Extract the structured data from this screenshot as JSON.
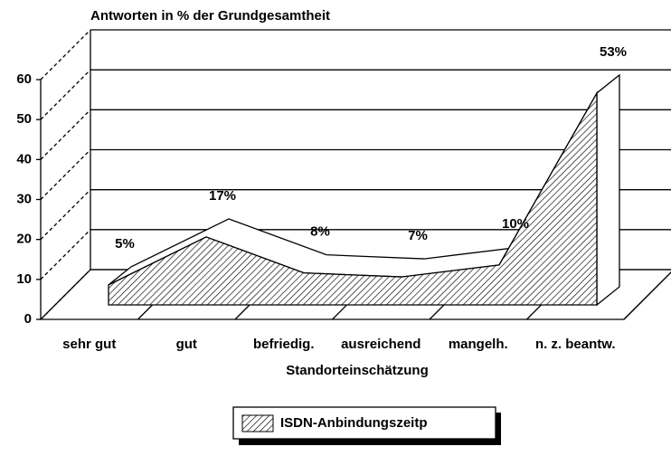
{
  "chart_data": {
    "type": "area3d",
    "title": "Antworten in % der Grundgesamtheit",
    "x_label": "Standorteinschätzung",
    "categories": [
      "sehr gut",
      "gut",
      "befriedig.",
      "ausreichend",
      "mangelh.",
      "n. z. beantw."
    ],
    "series": [
      {
        "name": "ISDN-Anbindungszeitp",
        "color": "#000000",
        "values": [
          5,
          17,
          8,
          7,
          10,
          53
        ],
        "value_labels": [
          "5%",
          "17%",
          "8%",
          "7%",
          "10%",
          "53%"
        ]
      }
    ],
    "ylim": [
      0,
      60
    ],
    "yticks": [
      0,
      10,
      20,
      30,
      40,
      50,
      60
    ],
    "grid": true,
    "legend": "bottom"
  }
}
